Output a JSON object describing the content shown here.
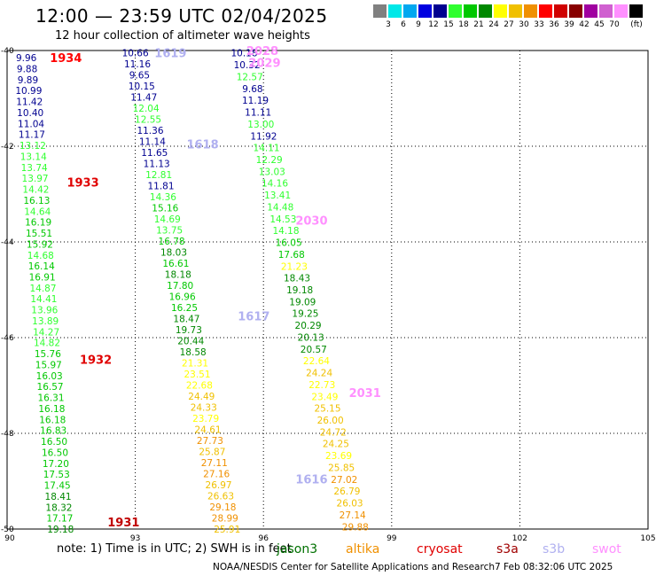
{
  "title": "12:00 — 23:59 UTC 02/04/2025",
  "subtitle": "12 hour collection of altimeter wave heights",
  "color_scale": {
    "unit": "(ft)",
    "bins": [
      {
        "color": "#808080",
        "label": ""
      },
      {
        "color": "#00e8e8",
        "label": "3"
      },
      {
        "color": "#00a8f0",
        "label": "6"
      },
      {
        "color": "#0000e0",
        "label": "9"
      },
      {
        "color": "#000090",
        "label": "12"
      },
      {
        "color": "#30ff30",
        "label": "15"
      },
      {
        "color": "#00c800",
        "label": "18"
      },
      {
        "color": "#008800",
        "label": "21"
      },
      {
        "color": "#ffff00",
        "label": "24"
      },
      {
        "color": "#f0c000",
        "label": "27"
      },
      {
        "color": "#f09000",
        "label": "30"
      },
      {
        "color": "#ff0000",
        "label": "33"
      },
      {
        "color": "#d00000",
        "label": "36"
      },
      {
        "color": "#880000",
        "label": "39"
      },
      {
        "color": "#a000a0",
        "label": "42"
      },
      {
        "color": "#d060d0",
        "label": "45"
      },
      {
        "color": "#ff90ff",
        "label": "70"
      },
      {
        "color": "#000000",
        "label": ""
      }
    ]
  },
  "axes": {
    "lon_min": 90,
    "lon_max": 105,
    "lat_min": -50,
    "lat_max": -40,
    "x_ticks": [
      "90",
      "93",
      "96",
      "99",
      "102",
      "105"
    ],
    "y_ticks": [
      "-40",
      "-42",
      "-44",
      "-46",
      "-48",
      "-50"
    ]
  },
  "passes": [
    {
      "label": "1934",
      "color": "#ff0000",
      "lon": 91.0,
      "lat": -40.15
    },
    {
      "label": "1933",
      "color": "#e00000",
      "lon": 91.4,
      "lat": -42.75
    },
    {
      "label": "1932",
      "color": "#e00000",
      "lon": 91.7,
      "lat": -46.45
    },
    {
      "label": "1931",
      "color": "#c00000",
      "lon": 92.35,
      "lat": -49.85
    },
    {
      "label": "1619",
      "color": "#b0b0f0",
      "lon": 93.45,
      "lat": -40.05
    },
    {
      "label": "1618",
      "color": "#b0b0f0",
      "lon": 94.2,
      "lat": -41.95
    },
    {
      "label": "1617",
      "color": "#b0b0f0",
      "lon": 95.4,
      "lat": -45.55
    },
    {
      "label": "1616",
      "color": "#b0b0f0",
      "lon": 96.75,
      "lat": -48.95
    },
    {
      "label": "2028",
      "color": "#ff90ff",
      "lon": 95.6,
      "lat": -40.0
    },
    {
      "label": "2029",
      "color": "#ff90ff",
      "lon": 95.65,
      "lat": -40.25
    },
    {
      "label": "2030",
      "color": "#ff90ff",
      "lon": 96.75,
      "lat": -43.55
    },
    {
      "label": "2031",
      "color": "#ff90ff",
      "lon": 98.0,
      "lat": -47.15
    }
  ],
  "tracks": [
    {
      "lon_start": 90.45,
      "lon_end": 91.25,
      "lat_start": -40.15,
      "lat_end": -50.0,
      "values": [
        {
          "v": "9.96",
          "c": "#000090"
        },
        {
          "v": "9.88",
          "c": "#000090"
        },
        {
          "v": "9.89",
          "c": "#000090"
        },
        {
          "v": "10.99",
          "c": "#000090"
        },
        {
          "v": "11.42",
          "c": "#000090"
        },
        {
          "v": "10.40",
          "c": "#000090"
        },
        {
          "v": "11.04",
          "c": "#000090"
        },
        {
          "v": "11.17",
          "c": "#000090"
        },
        {
          "v": "13.12",
          "c": "#30ff30"
        },
        {
          "v": "13.14",
          "c": "#30ff30"
        },
        {
          "v": "13.74",
          "c": "#30ff30"
        },
        {
          "v": "13.97",
          "c": "#30ff30"
        },
        {
          "v": "14.42",
          "c": "#30ff30"
        },
        {
          "v": "16.13",
          "c": "#00c800"
        },
        {
          "v": "14.64",
          "c": "#30ff30"
        },
        {
          "v": "16.19",
          "c": "#00c800"
        },
        {
          "v": "15.51",
          "c": "#00c800"
        },
        {
          "v": "15.92",
          "c": "#00c800"
        },
        {
          "v": "14.68",
          "c": "#30ff30"
        },
        {
          "v": "16.14",
          "c": "#00c800"
        },
        {
          "v": "16.91",
          "c": "#00c800"
        },
        {
          "v": "14.87",
          "c": "#30ff30"
        },
        {
          "v": "14.41",
          "c": "#30ff30"
        },
        {
          "v": "13.96",
          "c": "#30ff30"
        },
        {
          "v": "13.89",
          "c": "#30ff30"
        },
        {
          "v": "14.27",
          "c": "#30ff30"
        },
        {
          "v": "14.82",
          "c": "#30ff30"
        },
        {
          "v": "15.76",
          "c": "#00c800"
        },
        {
          "v": "15.97",
          "c": "#00c800"
        },
        {
          "v": "16.03",
          "c": "#00c800"
        },
        {
          "v": "16.57",
          "c": "#00c800"
        },
        {
          "v": "16.31",
          "c": "#00c800"
        },
        {
          "v": "16.18",
          "c": "#00c800"
        },
        {
          "v": "16.18",
          "c": "#00c800"
        },
        {
          "v": "16.83",
          "c": "#00c800"
        },
        {
          "v": "16.50",
          "c": "#00c800"
        },
        {
          "v": "16.50",
          "c": "#00c800"
        },
        {
          "v": "17.20",
          "c": "#00c800"
        },
        {
          "v": "17.53",
          "c": "#00c800"
        },
        {
          "v": "17.45",
          "c": "#00c800"
        },
        {
          "v": "18.41",
          "c": "#008800"
        },
        {
          "v": "18.32",
          "c": "#008800"
        },
        {
          "v": "17.17",
          "c": "#00c800"
        },
        {
          "v": "19.18",
          "c": "#008800"
        }
      ]
    },
    {
      "lon_start": 93.0,
      "lon_end": 95.15,
      "lat_start": -40.05,
      "lat_end": -50.0,
      "values": [
        {
          "v": "10.66",
          "c": "#000090"
        },
        {
          "v": "11.16",
          "c": "#000090"
        },
        {
          "v": "9.65",
          "c": "#000090"
        },
        {
          "v": "10.15",
          "c": "#000090"
        },
        {
          "v": "11.47",
          "c": "#000090"
        },
        {
          "v": "12.04",
          "c": "#30ff30"
        },
        {
          "v": "12.55",
          "c": "#30ff30"
        },
        {
          "v": "11.36",
          "c": "#000090"
        },
        {
          "v": "11.14",
          "c": "#000090"
        },
        {
          "v": "11.65",
          "c": "#000090"
        },
        {
          "v": "11.13",
          "c": "#000090"
        },
        {
          "v": "12.81",
          "c": "#30ff30"
        },
        {
          "v": "11.81",
          "c": "#000090"
        },
        {
          "v": "14.36",
          "c": "#30ff30"
        },
        {
          "v": "15.16",
          "c": "#00c800"
        },
        {
          "v": "14.69",
          "c": "#30ff30"
        },
        {
          "v": "13.75",
          "c": "#30ff30"
        },
        {
          "v": "16.78",
          "c": "#00c800"
        },
        {
          "v": "18.03",
          "c": "#008800"
        },
        {
          "v": "16.61",
          "c": "#00c800"
        },
        {
          "v": "18.18",
          "c": "#008800"
        },
        {
          "v": "17.80",
          "c": "#00c800"
        },
        {
          "v": "16.96",
          "c": "#00c800"
        },
        {
          "v": "16.25",
          "c": "#00c800"
        },
        {
          "v": "18.47",
          "c": "#008800"
        },
        {
          "v": "19.73",
          "c": "#008800"
        },
        {
          "v": "20.44",
          "c": "#008800"
        },
        {
          "v": "18.58",
          "c": "#008800"
        },
        {
          "v": "21.31",
          "c": "#ffff00"
        },
        {
          "v": "23.51",
          "c": "#ffff00"
        },
        {
          "v": "22.68",
          "c": "#ffff00"
        },
        {
          "v": "24.49",
          "c": "#f0c000"
        },
        {
          "v": "24.33",
          "c": "#f0c000"
        },
        {
          "v": "23.79",
          "c": "#ffff00"
        },
        {
          "v": "24.61",
          "c": "#f0c000"
        },
        {
          "v": "27.73",
          "c": "#f09000"
        },
        {
          "v": "25.87",
          "c": "#f0c000"
        },
        {
          "v": "27.11",
          "c": "#f09000"
        },
        {
          "v": "27.16",
          "c": "#f09000"
        },
        {
          "v": "26.97",
          "c": "#f0c000"
        },
        {
          "v": "26.63",
          "c": "#f0c000"
        },
        {
          "v": "29.18",
          "c": "#f09000"
        },
        {
          "v": "28.99",
          "c": "#f09000"
        },
        {
          "v": "25.91",
          "c": "#f0c000"
        }
      ]
    },
    {
      "lon_start": 95.55,
      "lon_end": 98.15,
      "lat_start": -40.05,
      "lat_end": -49.95,
      "values": [
        {
          "v": "10.18",
          "c": "#000090"
        },
        {
          "v": "10.32",
          "c": "#000090"
        },
        {
          "v": "12.57",
          "c": "#30ff30"
        },
        {
          "v": "9.68",
          "c": "#000090"
        },
        {
          "v": "11.19",
          "c": "#000090"
        },
        {
          "v": "11.11",
          "c": "#000090"
        },
        {
          "v": "13.00",
          "c": "#30ff30"
        },
        {
          "v": "11.92",
          "c": "#000090"
        },
        {
          "v": "14.11",
          "c": "#30ff30"
        },
        {
          "v": "12.29",
          "c": "#30ff30"
        },
        {
          "v": "13.03",
          "c": "#30ff30"
        },
        {
          "v": "14.16",
          "c": "#30ff30"
        },
        {
          "v": "13.41",
          "c": "#30ff30"
        },
        {
          "v": "14.48",
          "c": "#30ff30"
        },
        {
          "v": "14.53",
          "c": "#30ff30"
        },
        {
          "v": "14.18",
          "c": "#30ff30"
        },
        {
          "v": "16.05",
          "c": "#00c800"
        },
        {
          "v": "17.68",
          "c": "#00c800"
        },
        {
          "v": "21.23",
          "c": "#ffff00"
        },
        {
          "v": "18.43",
          "c": "#008800"
        },
        {
          "v": "19.18",
          "c": "#008800"
        },
        {
          "v": "19.09",
          "c": "#008800"
        },
        {
          "v": "19.25",
          "c": "#008800"
        },
        {
          "v": "20.29",
          "c": "#008800"
        },
        {
          "v": "20.13",
          "c": "#008800"
        },
        {
          "v": "20.57",
          "c": "#008800"
        },
        {
          "v": "22.64",
          "c": "#ffff00"
        },
        {
          "v": "24.24",
          "c": "#f0c000"
        },
        {
          "v": "22.73",
          "c": "#ffff00"
        },
        {
          "v": "23.49",
          "c": "#ffff00"
        },
        {
          "v": "25.15",
          "c": "#f0c000"
        },
        {
          "v": "26.00",
          "c": "#f0c000"
        },
        {
          "v": "24.72",
          "c": "#f0c000"
        },
        {
          "v": "24.25",
          "c": "#f0c000"
        },
        {
          "v": "23.69",
          "c": "#ffff00"
        },
        {
          "v": "25.85",
          "c": "#f0c000"
        },
        {
          "v": "27.02",
          "c": "#f09000"
        },
        {
          "v": "26.79",
          "c": "#f0c000"
        },
        {
          "v": "26.03",
          "c": "#f0c000"
        },
        {
          "v": "27.14",
          "c": "#f09000"
        },
        {
          "v": "29.88",
          "c": "#f09000"
        }
      ]
    }
  ],
  "note": "note: 1) Time is in UTC; 2) SWH is in feet",
  "satellites": [
    {
      "name": "jason3",
      "color": "#007000"
    },
    {
      "name": "altika",
      "color": "#f09000"
    },
    {
      "name": "cryosat",
      "color": "#e00000"
    },
    {
      "name": "s3a",
      "color": "#a00000"
    },
    {
      "name": "s3b",
      "color": "#b0b0f0"
    },
    {
      "name": "swot",
      "color": "#ff90ff"
    }
  ],
  "credit": "NOAA/NESDIS Center for Satellite Applications and Research",
  "timestamp": "7 Feb 08:32:06 UTC 2025"
}
